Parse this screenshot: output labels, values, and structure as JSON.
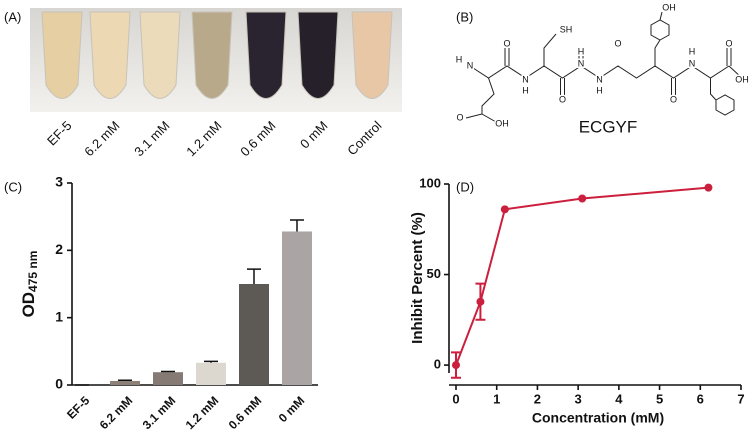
{
  "panel_labels": [
    "(A)",
    "(B)",
    "(C)",
    "(D)"
  ],
  "photo": {
    "tube_labels": [
      "EF-5",
      "6.2 mM",
      "3.1 mM",
      "1.2 mM",
      "0.6 mM",
      "0  mM",
      "Control"
    ]
  },
  "structure": {
    "name": "ECGYF",
    "atoms": [
      "H",
      "N",
      "O",
      "N",
      "H",
      "O",
      "N",
      "H",
      "O",
      "N",
      "H",
      "O",
      "N",
      "H",
      "O",
      "OH",
      "SH",
      "OH",
      "O",
      "OH"
    ]
  },
  "chart_data": [
    {
      "type": "bar",
      "ylabel": {
        "text": "OD",
        "sub": "475 nm"
      },
      "categories": [
        "EF-5",
        "6.2 mM",
        "3.1 mM",
        "1.2 mM",
        "0.6 mM",
        "0 mM"
      ],
      "values": [
        0,
        0.06,
        0.19,
        0.33,
        1.5,
        2.28
      ],
      "errors": [
        0,
        0.01,
        0.01,
        0.02,
        0.22,
        0.17
      ],
      "colors": [
        "#8c8078",
        "#8c8078",
        "#857a74",
        "#dcd8d0",
        "#5d5954",
        "#aaa4a4"
      ],
      "ylim": [
        0,
        3
      ],
      "yticks": [
        0,
        1,
        2,
        3
      ]
    },
    {
      "type": "line",
      "xlabel": "Concentration (mM)",
      "ylabel": "Inhibit Percent (%)",
      "x": [
        0,
        0.6,
        1.2,
        3.1,
        6.2
      ],
      "values": [
        0,
        35,
        86,
        92,
        98
      ],
      "errors": [
        7,
        10,
        0,
        0,
        0
      ],
      "color": "#cc1f3d",
      "xlim": [
        0,
        7
      ],
      "xticks": [
        0,
        1,
        2,
        3,
        4,
        5,
        6,
        7
      ],
      "ylim": [
        -11,
        100
      ],
      "yticks": [
        0,
        50,
        100
      ]
    }
  ]
}
